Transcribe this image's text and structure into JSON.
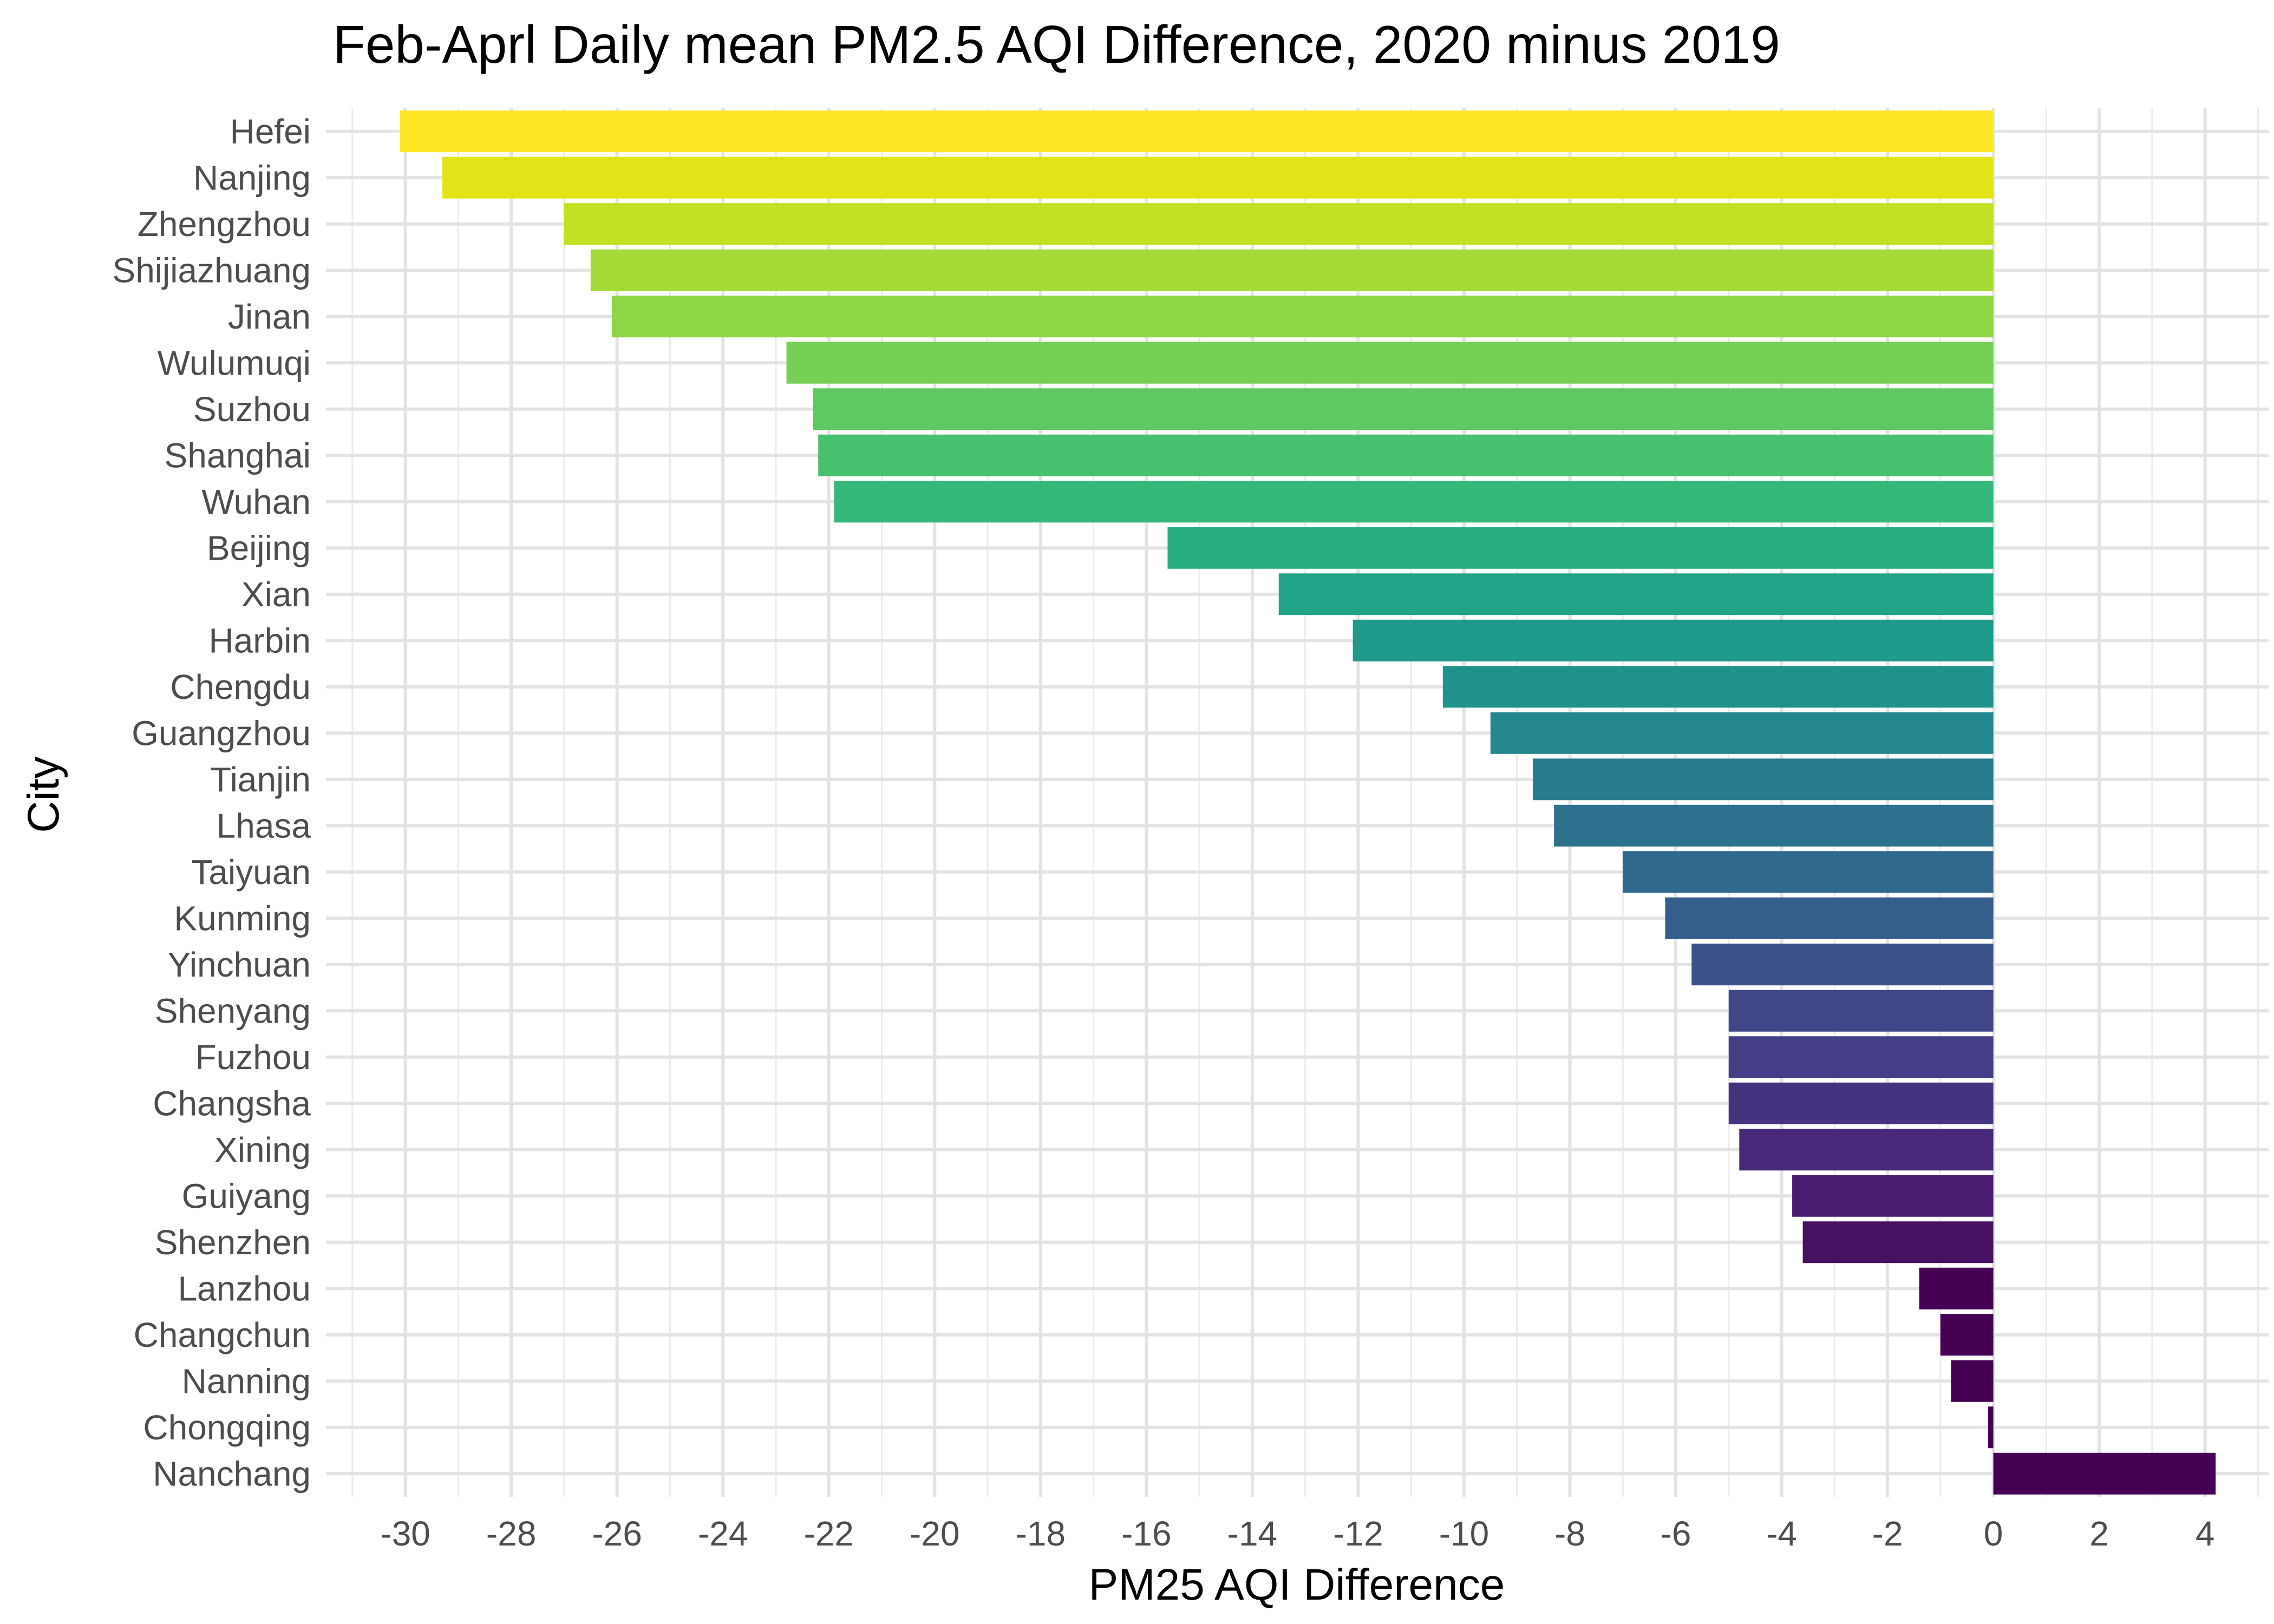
{
  "chart_data": {
    "type": "bar",
    "orientation": "horizontal",
    "title": "Feb-Aprl Daily mean PM2.5 AQI Difference, 2020 minus 2019",
    "xlabel": "PM25 AQI Difference",
    "ylabel": "City",
    "xlim": [
      -31.5,
      5.2
    ],
    "xticks": [
      -30,
      -28,
      -26,
      -24,
      -22,
      -20,
      -18,
      -16,
      -14,
      -12,
      -10,
      -8,
      -6,
      -4,
      -2,
      0,
      2,
      4
    ],
    "grid": true,
    "color_scale": "viridis",
    "categories": [
      "Hefei",
      "Nanjing",
      "Zhengzhou",
      "Shijiazhuang",
      "Jinan",
      "Wulumuqi",
      "Suzhou",
      "Shanghai",
      "Wuhan",
      "Beijing",
      "Xian",
      "Harbin",
      "Chengdu",
      "Guangzhou",
      "Tianjin",
      "Lhasa",
      "Taiyuan",
      "Kunming",
      "Yinchuan",
      "Shenyang",
      "Fuzhou",
      "Changsha",
      "Xining",
      "Guiyang",
      "Shenzhen",
      "Lanzhou",
      "Changchun",
      "Nanning",
      "Chongqing",
      "Nanchang"
    ],
    "values": [
      -30.1,
      -29.3,
      -27.0,
      -26.5,
      -26.1,
      -22.8,
      -22.3,
      -22.2,
      -21.9,
      -15.6,
      -13.5,
      -12.1,
      -10.4,
      -9.5,
      -8.7,
      -8.3,
      -7.0,
      -6.2,
      -5.7,
      -5.0,
      -5.0,
      -5.0,
      -4.8,
      -3.8,
      -3.6,
      -1.4,
      -1.0,
      -0.8,
      -0.1,
      4.2
    ],
    "colors": [
      "#FDE725",
      "#E2E418",
      "#C2DF23",
      "#A5DB36",
      "#8ED645",
      "#75D054",
      "#5EC962",
      "#48C16E",
      "#35B779",
      "#28AE80",
      "#20A386",
      "#1F998A",
      "#21918C",
      "#24868E",
      "#287C8E",
      "#2C728E",
      "#31688E",
      "#355E8D",
      "#3B528B",
      "#404688",
      "#433E85",
      "#46337F",
      "#482878",
      "#481C6E",
      "#471063",
      "#440154",
      "#440154",
      "#440154",
      "#440154",
      "#440154"
    ]
  }
}
